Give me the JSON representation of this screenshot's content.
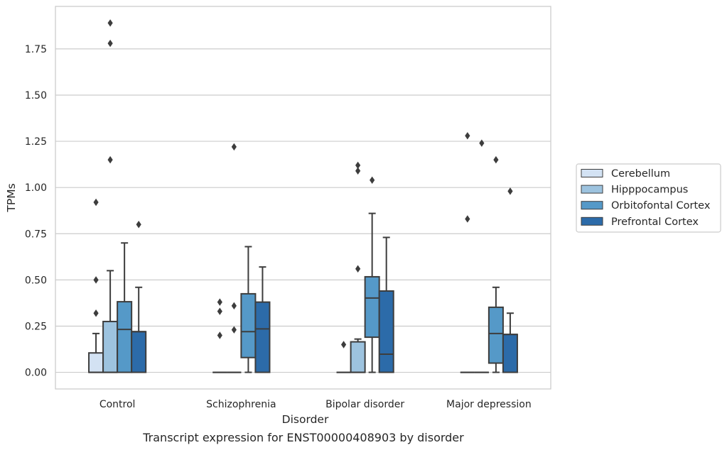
{
  "chart_data": {
    "type": "boxplot",
    "xlabel": "Disorder",
    "ylabel": "TPMs",
    "caption": "Transcript expression for ENST00000408903 by disorder",
    "ylim": [
      -0.09,
      1.98
    ],
    "yticks": [
      0.0,
      0.25,
      0.5,
      0.75,
      1.0,
      1.25,
      1.5,
      1.75
    ],
    "ytick_labels": [
      "0.00",
      "0.25",
      "0.50",
      "0.75",
      "1.00",
      "1.25",
      "1.50",
      "1.75"
    ],
    "grid": true,
    "legend_position": "right",
    "categories": [
      "Control",
      "Schizophrenia",
      "Bipolar disorder",
      "Major depression"
    ],
    "series": [
      {
        "name": "Cerebellum",
        "color": "#d3e2f3",
        "boxes": [
          {
            "q1": 0.0,
            "median": 0.0,
            "q3": 0.105,
            "whisker_low": 0.0,
            "whisker_high": 0.21,
            "outliers": [
              0.32,
              0.5,
              0.92
            ]
          },
          {
            "q1": 0.0,
            "median": 0.0,
            "q3": 0.0,
            "whisker_low": 0.0,
            "whisker_high": 0.0,
            "outliers": [
              0.2,
              0.33,
              0.38
            ]
          },
          {
            "q1": 0.0,
            "median": 0.0,
            "q3": 0.0,
            "whisker_low": 0.0,
            "whisker_high": 0.0,
            "outliers": [
              0.15
            ]
          },
          {
            "q1": 0.0,
            "median": 0.0,
            "q3": 0.0,
            "whisker_low": 0.0,
            "whisker_high": 0.0,
            "outliers": [
              0.83,
              1.28
            ]
          }
        ]
      },
      {
        "name": "Hipppocampus",
        "color": "#9dc3df",
        "boxes": [
          {
            "q1": 0.0,
            "median": 0.0,
            "q3": 0.275,
            "whisker_low": 0.0,
            "whisker_high": 0.55,
            "outliers": [
              1.15,
              1.78,
              1.89
            ]
          },
          {
            "q1": 0.0,
            "median": 0.0,
            "q3": 0.0,
            "whisker_low": 0.0,
            "whisker_high": 0.0,
            "outliers": [
              0.23,
              0.36,
              1.22
            ]
          },
          {
            "q1": 0.0,
            "median": 0.0,
            "q3": 0.165,
            "whisker_low": 0.0,
            "whisker_high": 0.18,
            "outliers": [
              0.56,
              1.09,
              1.12
            ]
          },
          {
            "q1": 0.0,
            "median": 0.0,
            "q3": 0.0,
            "whisker_low": 0.0,
            "whisker_high": 0.0,
            "outliers": [
              1.24
            ]
          }
        ]
      },
      {
        "name": "Orbitofontal Cortex",
        "color": "#5599c8",
        "boxes": [
          {
            "q1": 0.0,
            "median": 0.232,
            "q3": 0.382,
            "whisker_low": 0.0,
            "whisker_high": 0.7,
            "outliers": []
          },
          {
            "q1": 0.08,
            "median": 0.22,
            "q3": 0.425,
            "whisker_low": 0.0,
            "whisker_high": 0.68,
            "outliers": []
          },
          {
            "q1": 0.19,
            "median": 0.402,
            "q3": 0.517,
            "whisker_low": 0.0,
            "whisker_high": 0.86,
            "outliers": [
              1.04
            ]
          },
          {
            "q1": 0.05,
            "median": 0.21,
            "q3": 0.352,
            "whisker_low": 0.0,
            "whisker_high": 0.46,
            "outliers": [
              1.15
            ]
          }
        ]
      },
      {
        "name": "Prefrontal Cortex",
        "color": "#2c6ba9",
        "boxes": [
          {
            "q1": 0.0,
            "median": 0.22,
            "q3": 0.22,
            "whisker_low": 0.0,
            "whisker_high": 0.46,
            "outliers": [
              0.8
            ]
          },
          {
            "q1": 0.0,
            "median": 0.235,
            "q3": 0.38,
            "whisker_low": 0.0,
            "whisker_high": 0.57,
            "outliers": []
          },
          {
            "q1": 0.0,
            "median": 0.098,
            "q3": 0.44,
            "whisker_low": 0.0,
            "whisker_high": 0.73,
            "outliers": []
          },
          {
            "q1": 0.0,
            "median": 0.205,
            "q3": 0.205,
            "whisker_low": 0.0,
            "whisker_high": 0.32,
            "outliers": [
              0.98
            ]
          }
        ]
      }
    ]
  }
}
